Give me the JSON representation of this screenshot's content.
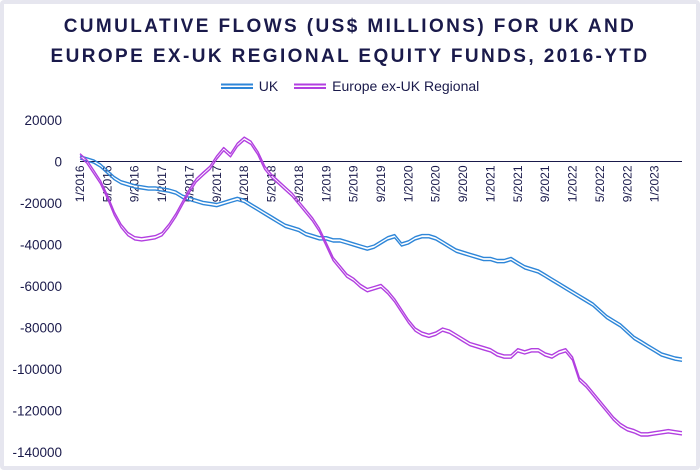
{
  "title_line1": "CUMULATIVE FLOWS (US$ MILLIONS) FOR UK AND",
  "title_line2": "EUROPE EX-UK REGIONAL EQUITY FUNDS, 2016-YTD",
  "colors": {
    "uk": "#2e86d8",
    "europe": "#b23fe0",
    "axis": "#1a1a4b"
  },
  "chart_data": {
    "type": "line",
    "title": "CUMULATIVE FLOWS (US$ MILLIONS) FOR UK AND EUROPE EX-UK REGIONAL EQUITY FUNDS, 2016-YTD",
    "xlabel": "",
    "ylabel": "",
    "ylim": [
      -140000,
      20000
    ],
    "yticks": [
      20000,
      0,
      -20000,
      -40000,
      -60000,
      -80000,
      -100000,
      -120000,
      -140000
    ],
    "ytick_labels": [
      "20000",
      "0",
      "-20000",
      "-40000",
      "-60000",
      "-80000",
      "-100000",
      "-120000",
      "-140000"
    ],
    "xticks": [
      "1/2016",
      "5/2016",
      "9/2016",
      "1/2017",
      "5/2017",
      "9/2017",
      "1/2018",
      "5/2018",
      "9/2018",
      "1/2019",
      "5/2019",
      "9/2019",
      "1/2020",
      "5/2020",
      "9/2020",
      "1/2021",
      "5/2021",
      "9/2021",
      "1/2022",
      "5/2022",
      "9/2022",
      "1/2023"
    ],
    "legend_position": "top-center",
    "x": [
      "1/2016",
      "2/2016",
      "3/2016",
      "4/2016",
      "5/2016",
      "6/2016",
      "7/2016",
      "8/2016",
      "9/2016",
      "10/2016",
      "11/2016",
      "12/2016",
      "1/2017",
      "2/2017",
      "3/2017",
      "4/2017",
      "5/2017",
      "6/2017",
      "7/2017",
      "8/2017",
      "9/2017",
      "10/2017",
      "11/2017",
      "12/2017",
      "1/2018",
      "2/2018",
      "3/2018",
      "4/2018",
      "5/2018",
      "6/2018",
      "7/2018",
      "8/2018",
      "9/2018",
      "10/2018",
      "11/2018",
      "12/2018",
      "1/2019",
      "2/2019",
      "3/2019",
      "4/2019",
      "5/2019",
      "6/2019",
      "7/2019",
      "8/2019",
      "9/2019",
      "10/2019",
      "11/2019",
      "12/2019",
      "1/2020",
      "2/2020",
      "3/2020",
      "4/2020",
      "5/2020",
      "6/2020",
      "7/2020",
      "8/2020",
      "9/2020",
      "10/2020",
      "11/2020",
      "12/2020",
      "1/2021",
      "2/2021",
      "3/2021",
      "4/2021",
      "5/2021",
      "6/2021",
      "7/2021",
      "8/2021",
      "9/2021",
      "10/2021",
      "11/2021",
      "12/2021",
      "1/2022",
      "2/2022",
      "3/2022",
      "4/2022",
      "5/2022",
      "6/2022",
      "7/2022",
      "8/2022",
      "9/2022",
      "10/2022",
      "11/2022",
      "12/2022",
      "1/2023",
      "2/2023",
      "3/2023",
      "4/2023",
      "5/2023"
    ],
    "series": [
      {
        "name": "UK",
        "values": [
          2000,
          1000,
          0,
          -2000,
          -5000,
          -8000,
          -10000,
          -11000,
          -12000,
          -12500,
          -13000,
          -13000,
          -13500,
          -14000,
          -15000,
          -17000,
          -18000,
          -19000,
          -20000,
          -20500,
          -21000,
          -20000,
          -19000,
          -18000,
          -19000,
          -21000,
          -23000,
          -25000,
          -27000,
          -29000,
          -31000,
          -32000,
          -33000,
          -35000,
          -36000,
          -37000,
          -37000,
          -38000,
          -38000,
          -39000,
          -40000,
          -41000,
          -42000,
          -41000,
          -39000,
          -37000,
          -36000,
          -40000,
          -39000,
          -37000,
          -36000,
          -36000,
          -37000,
          -39000,
          -41000,
          -43000,
          -44000,
          -45000,
          -46000,
          -47000,
          -47000,
          -48000,
          -48000,
          -47000,
          -49000,
          -51000,
          -52000,
          -53000,
          -55000,
          -57000,
          -59000,
          -61000,
          -63000,
          -65000,
          -67000,
          -69000,
          -72000,
          -75000,
          -77000,
          -79000,
          -82000,
          -85000,
          -87000,
          -89000,
          -91000,
          -93000,
          -94000,
          -95000,
          -95500
        ]
      },
      {
        "name": "Europe ex-UK Regional",
        "values": [
          3000,
          0,
          -5000,
          -10000,
          -17000,
          -25000,
          -31000,
          -35000,
          -37000,
          -37500,
          -37000,
          -36500,
          -35000,
          -31000,
          -26000,
          -20000,
          -14000,
          -9000,
          -6000,
          -3000,
          2000,
          6000,
          3000,
          8000,
          11000,
          9000,
          4000,
          -3000,
          -7000,
          -10000,
          -13000,
          -16000,
          -20000,
          -24000,
          -28000,
          -33000,
          -40000,
          -47000,
          -51000,
          -55000,
          -57000,
          -60000,
          -62000,
          -61000,
          -60000,
          -63000,
          -67000,
          -72000,
          -77000,
          -81000,
          -83000,
          -84000,
          -83000,
          -81000,
          -82000,
          -84000,
          -86000,
          -88000,
          -89000,
          -90000,
          -91000,
          -93000,
          -94000,
          -94000,
          -91000,
          -92000,
          -91000,
          -91000,
          -93000,
          -94000,
          -92000,
          -91000,
          -95000,
          -105000,
          -108000,
          -112000,
          -116000,
          -120000,
          -124000,
          -127000,
          -129000,
          -130000,
          -131500,
          -131500,
          -131000,
          -130500,
          -130000,
          -130500,
          -131000
        ]
      }
    ]
  }
}
